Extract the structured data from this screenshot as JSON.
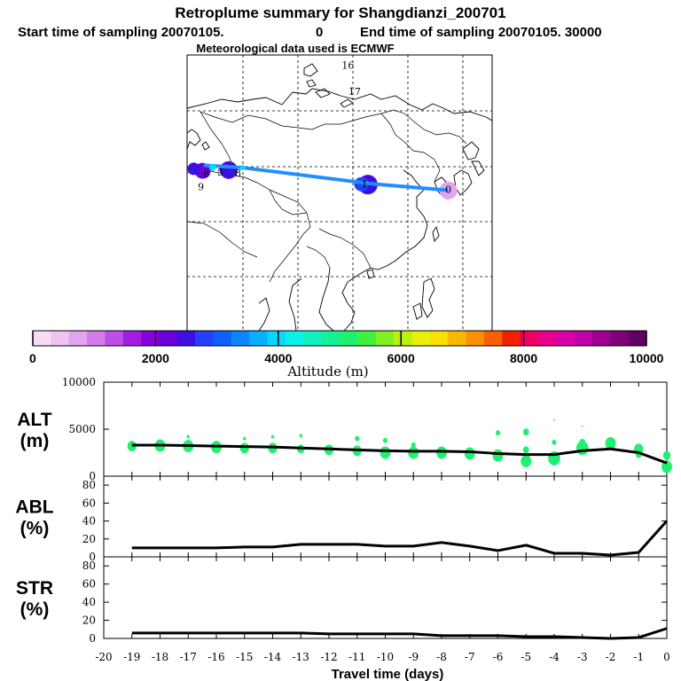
{
  "header": {
    "title": "Retroplume summary for Shangdianzi_200701",
    "start_label": "Start time of sampling 20070105.",
    "start_value": "0",
    "end_label": "End time of sampling 20070105. 30000",
    "met_label": "Meteorological data used is ECMWF"
  },
  "map": {
    "trajectory_labels": [
      {
        "label": "0",
        "lon": 117.1,
        "lat": 40.65
      },
      {
        "label": "1",
        "lon": 102.0,
        "lat": 42.0
      },
      {
        "label": "5",
        "lon": 76.0,
        "lat": 45.1
      },
      {
        "label": "6",
        "lon": 73.5,
        "lat": 44.6
      },
      {
        "label": "8",
        "lon": 79.2,
        "lat": 44.8
      },
      {
        "label": "9",
        "lon": 72.5,
        "lat": 41.3
      },
      {
        "label": "16",
        "lon": 99.0,
        "lat": 72.2
      },
      {
        "label": "17",
        "lon": 100.2,
        "lat": 65.6
      }
    ],
    "track": [
      {
        "lon": 117.1,
        "lat": 40.65
      },
      {
        "lon": 103.3,
        "lat": 42.3
      },
      {
        "lon": 80.0,
        "lat": 46.4
      },
      {
        "lon": 73.0,
        "lat": 47.0
      }
    ],
    "color": "#1f8fff"
  },
  "colorbar": {
    "label": "Altitude (m)",
    "ticks": [
      "0",
      "2000",
      "4000",
      "6000",
      "8000",
      "10000"
    ],
    "colors": [
      "#f7dcf7",
      "#eec4f2",
      "#e2a4ee",
      "#d27ce9",
      "#be4fe6",
      "#a41ee2",
      "#8800dd",
      "#6a00dc",
      "#3d10e0",
      "#2440ff",
      "#1060ff",
      "#0a88ff",
      "#08b0ff",
      "#06d8ff",
      "#08f0e8",
      "#10f0c0",
      "#18f098",
      "#20f070",
      "#40f040",
      "#80f020",
      "#b8f010",
      "#e8f008",
      "#f8e000",
      "#f8b800",
      "#f89000",
      "#f86000",
      "#f02000",
      "#f00060",
      "#e8008c",
      "#d800a8",
      "#c000a8",
      "#a00090",
      "#800078",
      "#600060"
    ]
  },
  "chart_data": [
    {
      "type": "line",
      "id": "ALT",
      "ylabel_main": "ALT",
      "ylabel_unit": "(m)",
      "ylim": [
        0,
        10000
      ],
      "yticks": [
        "0",
        "5000",
        "10000"
      ],
      "x": [
        -19,
        -18,
        -17,
        -16,
        -15,
        -14,
        -13,
        -12,
        -11,
        -10,
        -9,
        -8,
        -7,
        -6,
        -5,
        -4,
        -3,
        -2,
        -1,
        0
      ],
      "values": [
        3300,
        3300,
        3250,
        3200,
        3150,
        3100,
        3000,
        2900,
        2800,
        2700,
        2650,
        2650,
        2600,
        2400,
        2300,
        2300,
        2700,
        2900,
        2500,
        1400
      ],
      "scatter": [
        {
          "x": -19,
          "y": 3200,
          "r": 6
        },
        {
          "x": -18,
          "y": 3250,
          "r": 7
        },
        {
          "x": -17,
          "y": 3200,
          "r": 7
        },
        {
          "x": -16,
          "y": 3100,
          "r": 7
        },
        {
          "x": -15,
          "y": 3000,
          "r": 6
        },
        {
          "x": -14,
          "y": 3000,
          "r": 6
        },
        {
          "x": -13,
          "y": 2900,
          "r": 5
        },
        {
          "x": -12,
          "y": 2800,
          "r": 6
        },
        {
          "x": -11,
          "y": 2700,
          "r": 6
        },
        {
          "x": -10,
          "y": 2500,
          "r": 7
        },
        {
          "x": -9,
          "y": 2500,
          "r": 7
        },
        {
          "x": -8,
          "y": 2500,
          "r": 7
        },
        {
          "x": -7,
          "y": 2400,
          "r": 7
        },
        {
          "x": -6,
          "y": 2200,
          "r": 7
        },
        {
          "x": -5,
          "y": 1600,
          "r": 7
        },
        {
          "x": -4,
          "y": 1900,
          "r": 8
        },
        {
          "x": -3,
          "y": 3000,
          "r": 8
        },
        {
          "x": -2,
          "y": 3500,
          "r": 7
        },
        {
          "x": -1,
          "y": 2900,
          "r": 6
        },
        {
          "x": 0,
          "y": 1000,
          "r": 7
        },
        {
          "x": -17,
          "y": 4200,
          "r": 2
        },
        {
          "x": -15,
          "y": 4000,
          "r": 2
        },
        {
          "x": -14,
          "y": 4200,
          "r": 2
        },
        {
          "x": -13,
          "y": 4300,
          "r": 2
        },
        {
          "x": -11,
          "y": 4000,
          "r": 3
        },
        {
          "x": -6,
          "y": 4600,
          "r": 3
        },
        {
          "x": -5,
          "y": 4700,
          "r": 4
        },
        {
          "x": -4,
          "y": 6000,
          "r": 1
        },
        {
          "x": -3,
          "y": 5300,
          "r": 1
        },
        {
          "x": -4,
          "y": 3600,
          "r": 3
        },
        {
          "x": -5,
          "y": 2800,
          "r": 4
        },
        {
          "x": -10,
          "y": 3800,
          "r": 3
        },
        {
          "x": -9,
          "y": 3300,
          "r": 3
        },
        {
          "x": -3,
          "y": 3600,
          "r": 4
        },
        {
          "x": -1,
          "y": 2300,
          "r": 4
        },
        {
          "x": 0,
          "y": 2200,
          "r": 5
        }
      ],
      "scatter_color": "#20f070"
    },
    {
      "type": "line",
      "id": "ABL",
      "ylabel_main": "ABL",
      "ylabel_unit": "(%)",
      "ylim": [
        0,
        90
      ],
      "yticks": [
        "0",
        "20",
        "40",
        "60",
        "80"
      ],
      "x": [
        -19,
        -18,
        -17,
        -16,
        -15,
        -14,
        -13,
        -12,
        -11,
        -10,
        -9,
        -8,
        -7,
        -6,
        -5,
        -4,
        -3,
        -2,
        -1,
        0
      ],
      "values": [
        10,
        10,
        10,
        10,
        11,
        11,
        14,
        14,
        14,
        12,
        12,
        16,
        12,
        7,
        13,
        4,
        4,
        2,
        5,
        40
      ]
    },
    {
      "type": "line",
      "id": "STR",
      "ylabel_main": "STR",
      "ylabel_unit": "(%)",
      "ylim": [
        0,
        90
      ],
      "yticks": [
        "0",
        "20",
        "40",
        "60",
        "80"
      ],
      "x": [
        -19,
        -18,
        -17,
        -16,
        -15,
        -14,
        -13,
        -12,
        -11,
        -10,
        -9,
        -8,
        -7,
        -6,
        -5,
        -4,
        -3,
        -2,
        -1,
        0
      ],
      "values": [
        6,
        6,
        6,
        6,
        6,
        6,
        6,
        5,
        5,
        5,
        5,
        3,
        3,
        3,
        2,
        2,
        1,
        0,
        1,
        11
      ]
    }
  ],
  "xaxis": {
    "label": "Travel time (days)",
    "min": -20,
    "max": 0,
    "ticks": [
      "-20",
      "-19",
      "-18",
      "-17",
      "-16",
      "-15",
      "-14",
      "-13",
      "-12",
      "-11",
      "-10",
      "-9",
      "-8",
      "-7",
      "-6",
      "-5",
      "-4",
      "-3",
      "-2",
      "-1",
      "0"
    ]
  }
}
